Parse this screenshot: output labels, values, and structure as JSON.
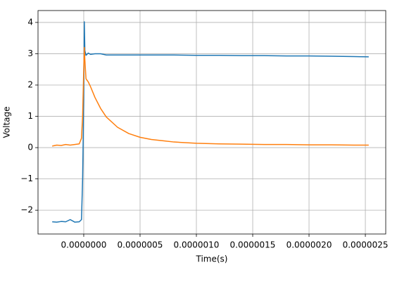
{
  "chart_data": {
    "type": "line",
    "xlabel": "Time(s)",
    "ylabel": "Voltage",
    "x": [
      -2.8e-07,
      -2.4e-07,
      -2e-07,
      -1.6e-07,
      -1.2e-07,
      -8e-08,
      -4e-08,
      -2e-08,
      -1e-08,
      0,
      5e-09,
      1e-08,
      2e-08,
      4e-08,
      6e-08,
      1e-07,
      1.5e-07,
      2e-07,
      3e-07,
      4e-07,
      5e-07,
      6e-07,
      7e-07,
      8e-07,
      1e-06,
      1.2e-06,
      1.4e-06,
      1.6e-06,
      1.8e-06,
      2e-06,
      2.2e-06,
      2.4e-06,
      2.53e-06
    ],
    "series": [
      {
        "color": "#1f77b4",
        "values": [
          -2.37,
          -2.38,
          -2.36,
          -2.37,
          -2.3,
          -2.38,
          -2.37,
          -2.3,
          -1.0,
          1.5,
          4.02,
          3.1,
          2.95,
          3.02,
          2.98,
          3.0,
          3.0,
          2.96,
          2.96,
          2.96,
          2.96,
          2.96,
          2.96,
          2.96,
          2.95,
          2.95,
          2.94,
          2.94,
          2.93,
          2.93,
          2.92,
          2.91,
          2.9
        ]
      },
      {
        "color": "#ff7f0e",
        "values": [
          0.05,
          0.08,
          0.07,
          0.1,
          0.08,
          0.1,
          0.12,
          0.3,
          1.0,
          2.5,
          3.2,
          2.8,
          2.2,
          2.1,
          1.95,
          1.6,
          1.25,
          0.98,
          0.65,
          0.45,
          0.33,
          0.26,
          0.22,
          0.18,
          0.14,
          0.12,
          0.11,
          0.1,
          0.1,
          0.09,
          0.09,
          0.08,
          0.08
        ]
      }
    ],
    "xlim": [
      -4.06e-07,
      2.681e-06
    ],
    "xticks": [
      {
        "value": 0,
        "label": "0.0000000"
      },
      {
        "value": 5e-07,
        "label": "0.0000005"
      },
      {
        "value": 1e-06,
        "label": "0.0000010"
      },
      {
        "value": 1.5e-06,
        "label": "0.0000015"
      },
      {
        "value": 2e-06,
        "label": "0.0000020"
      },
      {
        "value": 2.5e-06,
        "label": "0.0000025"
      }
    ],
    "ylim": [
      -2.76,
      4.38
    ],
    "yticks": [
      {
        "value": -2,
        "label": "−2"
      },
      {
        "value": -1,
        "label": "−1"
      },
      0,
      1,
      2,
      3,
      4
    ],
    "grid": true
  }
}
